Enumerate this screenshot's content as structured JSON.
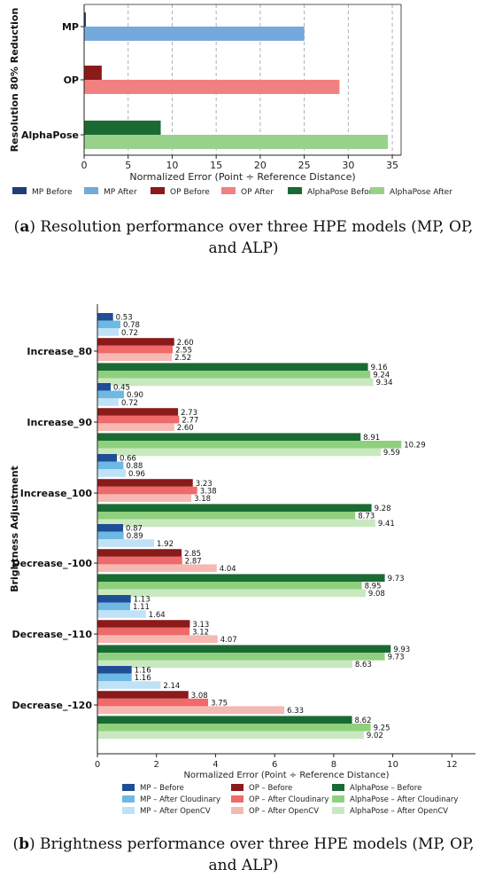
{
  "chart_data": [
    {
      "type": "bar",
      "orientation": "horizontal",
      "categories": [
        "MP",
        "OP",
        "AlphaPose"
      ],
      "series": [
        {
          "name": "MP Before",
          "category": "MP",
          "value": 0.2,
          "color": "#1f3d7a"
        },
        {
          "name": "MP After",
          "category": "MP",
          "value": 25,
          "color": "#74a9dc"
        },
        {
          "name": "OP Before",
          "category": "OP",
          "value": 2.0,
          "color": "#8b1a1a"
        },
        {
          "name": "OP After",
          "category": "OP",
          "value": 29,
          "color": "#f28080"
        },
        {
          "name": "AlphaPose Before",
          "category": "AlphaPose",
          "value": 8.7,
          "color": "#1a6b33"
        },
        {
          "name": "AlphaPose After",
          "category": "AlphaPose",
          "value": 34.5,
          "color": "#98d28a"
        }
      ],
      "xlabel": "Normalized Error (Point ÷ Reference Distance)",
      "ylabel": "Resolution 80% Reduction",
      "xlim": [
        0,
        36
      ],
      "xticks": [
        0,
        5,
        10,
        15,
        20,
        25,
        30,
        35
      ],
      "grid": "x dashed",
      "legend": "bottom"
    },
    {
      "type": "bar",
      "orientation": "horizontal",
      "categories": [
        "Increase_80",
        "Increase_90",
        "Increase_100",
        "Decrease_-100",
        "Decrease_-110",
        "Decrease_-120"
      ],
      "series": [
        {
          "name": "MP – Before",
          "color": "#1f4e96",
          "values": [
            0.53,
            0.45,
            0.66,
            0.87,
            1.13,
            1.16
          ]
        },
        {
          "name": "MP – After Cloudinary",
          "color": "#6db9e3",
          "values": [
            0.78,
            0.9,
            0.88,
            0.89,
            1.11,
            1.16
          ]
        },
        {
          "name": "MP – After OpenCV",
          "color": "#bfe2f7",
          "values": [
            0.72,
            0.72,
            0.96,
            1.92,
            1.64,
            2.14
          ]
        },
        {
          "name": "OP – Before",
          "color": "#8b1a1a",
          "values": [
            2.6,
            2.73,
            3.23,
            2.85,
            3.13,
            3.08
          ]
        },
        {
          "name": "OP – After Cloudinary",
          "color": "#ef6a6a",
          "values": [
            2.55,
            2.77,
            3.38,
            2.87,
            3.12,
            3.75
          ]
        },
        {
          "name": "OP – After OpenCV",
          "color": "#f6b8b3",
          "values": [
            2.52,
            2.6,
            3.18,
            4.04,
            4.07,
            6.33
          ]
        },
        {
          "name": "AlphaPose – Before",
          "color": "#1a6b33",
          "values": [
            9.16,
            8.91,
            9.28,
            9.73,
            9.93,
            8.62
          ]
        },
        {
          "name": "AlphaPose – After Cloudinary",
          "color": "#8fd07e",
          "values": [
            9.24,
            10.29,
            8.73,
            8.95,
            9.73,
            9.25
          ]
        },
        {
          "name": "AlphaPose – After OpenCV",
          "color": "#c9e8c0",
          "values": [
            9.34,
            9.59,
            9.41,
            9.08,
            8.63,
            9.02
          ]
        }
      ],
      "value_labels": [
        [
          "0.53",
          "0.78",
          "0.72",
          "2.60",
          "2.55",
          "2.52",
          "9.16",
          "9.24",
          "9.34"
        ],
        [
          "0.45",
          "0.90",
          "0.72",
          "2.73",
          "2.77",
          "2.60",
          "8.91",
          "10.29",
          "9.59"
        ],
        [
          "0.66",
          "0.88",
          "0.96",
          "3.23",
          "3.38",
          "3.18",
          "9.28",
          "8.73",
          "9.41"
        ],
        [
          "0.87",
          "0.89",
          "1.92",
          "2.85",
          "2.87",
          "4.04",
          "9.73",
          "8.95",
          "9.08"
        ],
        [
          "1.13",
          "1.11",
          "1.64",
          "3.13",
          "3.12",
          "4.07",
          "9.93",
          "9.73",
          "8.63"
        ],
        [
          "1.16",
          "1.16",
          "2.14",
          "3.08",
          "3.75",
          "6.33",
          "8.62",
          "9.25",
          "9.02"
        ]
      ],
      "xlabel": "Normalized Error (Point ÷ Reference Distance)",
      "ylabel": "Brightness Adjustment",
      "xlim": [
        0,
        12.8
      ],
      "xticks": [
        0,
        2,
        4,
        6,
        8,
        10,
        12
      ],
      "grid": "none",
      "legend": "bottom"
    }
  ],
  "captions": {
    "a_label": "a",
    "a_text": " Resolution performance over three HPE models (MP, OP, and ALP)",
    "b_label": "b",
    "b_text": " Brightness performance over three HPE models (MP, OP, and ALP)"
  }
}
